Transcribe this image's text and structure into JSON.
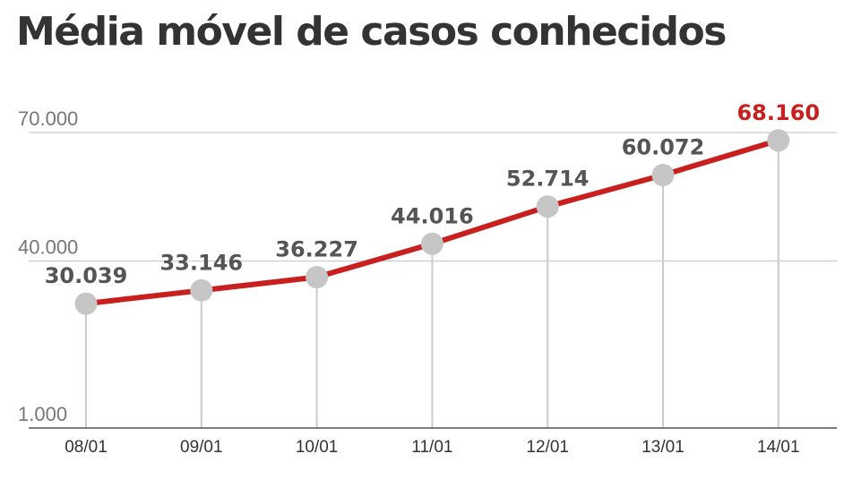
{
  "chart_data": {
    "type": "line",
    "title": "Média móvel de casos conhecidos",
    "categories": [
      "08/01",
      "09/01",
      "10/01",
      "11/01",
      "12/01",
      "13/01",
      "14/01"
    ],
    "values": [
      30039,
      33146,
      36227,
      44016,
      52714,
      60072,
      68160
    ],
    "data_labels": [
      "30.039",
      "33.146",
      "36.227",
      "44.016",
      "52.714",
      "60.072",
      "68.160"
    ],
    "y_ticks": [
      {
        "value": 1000,
        "label": "1.000"
      },
      {
        "value": 40000,
        "label": "40.000"
      },
      {
        "value": 70000,
        "label": "70.000"
      }
    ],
    "ylim": [
      1000,
      70000
    ],
    "grid": true,
    "xlabel": "",
    "ylabel": "",
    "colors": {
      "line": "#c8201e",
      "marker": "#c6c6c6",
      "last_label": "#c8201e",
      "label": "#555555",
      "title": "#333333",
      "grid": "#cccccc",
      "axis": "#555555"
    }
  }
}
